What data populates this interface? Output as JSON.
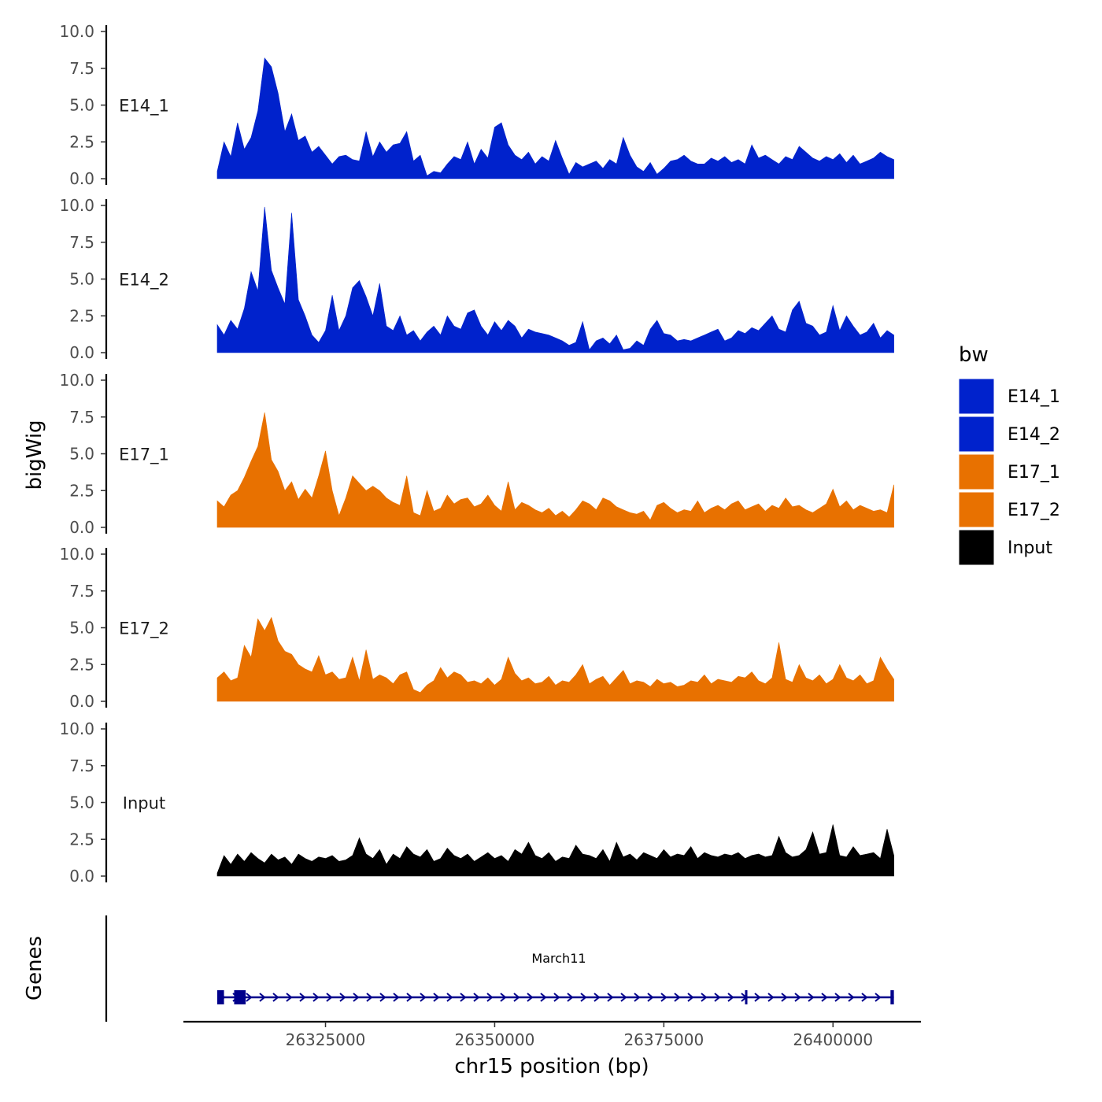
{
  "chart_data": {
    "type": "area",
    "y_axis_title": "bigWig",
    "x_axis_title": "chr15 position (bp)",
    "gene_axis_title": "Genes",
    "xlim": [
      26304000,
      26413000
    ],
    "x_data_range": [
      26309000,
      26409000
    ],
    "x_ticks": [
      26325000,
      26350000,
      26375000,
      26400000
    ],
    "x_tick_labels": [
      "26325000",
      "26350000",
      "26375000",
      "26400000"
    ],
    "ylim": [
      0,
      10
    ],
    "y_ticks": [
      0,
      2.5,
      5,
      7.5,
      10
    ],
    "y_tick_labels": [
      "0.0",
      "2.5",
      "5.0",
      "7.5",
      "10.0"
    ],
    "legend": {
      "title": "bw",
      "entries": [
        {
          "name": "E14_1",
          "color": "#0022cc"
        },
        {
          "name": "E14_2",
          "color": "#0022cc"
        },
        {
          "name": "E17_1",
          "color": "#e87100"
        },
        {
          "name": "E17_2",
          "color": "#e87100"
        },
        {
          "name": "Input",
          "color": "#000000"
        }
      ]
    },
    "series": [
      {
        "name": "E14_1",
        "color": "#0022cc",
        "x": [
          26309000,
          26310000,
          26311000,
          26312000,
          26313000,
          26314000,
          26315000,
          26316000,
          26317000,
          26318000,
          26319000,
          26320000,
          26321000,
          26322000,
          26323000,
          26324000,
          26325000,
          26326000,
          26327000,
          26328000,
          26329000,
          26330000,
          26331000,
          26332000,
          26333000,
          26334000,
          26335000,
          26336000,
          26337000,
          26338000,
          26339000,
          26340000,
          26341000,
          26342000,
          26343000,
          26344000,
          26345000,
          26346000,
          26347000,
          26348000,
          26349000,
          26350000,
          26351000,
          26352000,
          26353000,
          26354000,
          26355000,
          26356000,
          26357000,
          26358000,
          26359000,
          26360000,
          26361000,
          26362000,
          26363000,
          26364000,
          26365000,
          26366000,
          26367000,
          26368000,
          26369000,
          26370000,
          26371000,
          26372000,
          26373000,
          26374000,
          26375000,
          26376000,
          26377000,
          26378000,
          26379000,
          26380000,
          26381000,
          26382000,
          26383000,
          26384000,
          26385000,
          26386000,
          26387000,
          26388000,
          26389000,
          26390000,
          26391000,
          26392000,
          26393000,
          26394000,
          26395000,
          26396000,
          26397000,
          26398000,
          26399000,
          26400000,
          26401000,
          26402000,
          26403000,
          26404000,
          26405000,
          26406000,
          26407000,
          26408000,
          26409000
        ],
        "values": [
          0.5,
          2.5,
          1.5,
          3.8,
          2.0,
          2.8,
          4.6,
          8.2,
          7.6,
          5.8,
          3.2,
          4.4,
          2.6,
          2.9,
          1.8,
          2.2,
          1.6,
          1.0,
          1.5,
          1.6,
          1.3,
          1.2,
          3.2,
          1.5,
          2.5,
          1.8,
          2.3,
          2.4,
          3.2,
          1.2,
          1.6,
          0.2,
          0.5,
          0.4,
          1.0,
          1.5,
          1.3,
          2.5,
          1.0,
          2.0,
          1.4,
          3.5,
          3.8,
          2.3,
          1.6,
          1.3,
          1.8,
          1.0,
          1.5,
          1.2,
          2.6,
          1.4,
          0.3,
          1.1,
          0.8,
          1.0,
          1.2,
          0.7,
          1.3,
          1.0,
          2.8,
          1.6,
          0.8,
          0.5,
          1.1,
          0.3,
          0.7,
          1.2,
          1.3,
          1.6,
          1.2,
          1.0,
          1.0,
          1.4,
          1.2,
          1.5,
          1.1,
          1.3,
          1.0,
          2.3,
          1.4,
          1.6,
          1.3,
          1.0,
          1.5,
          1.3,
          2.2,
          1.8,
          1.4,
          1.2,
          1.5,
          1.3,
          1.7,
          1.1,
          1.6,
          1.0,
          1.2,
          1.4,
          1.8,
          1.5,
          1.3
        ]
      },
      {
        "name": "E14_2",
        "color": "#0022cc",
        "x": [
          26309000,
          26310000,
          26311000,
          26312000,
          26313000,
          26314000,
          26315000,
          26316000,
          26317000,
          26318000,
          26319000,
          26320000,
          26321000,
          26322000,
          26323000,
          26324000,
          26325000,
          26326000,
          26327000,
          26328000,
          26329000,
          26330000,
          26331000,
          26332000,
          26333000,
          26334000,
          26335000,
          26336000,
          26337000,
          26338000,
          26339000,
          26340000,
          26341000,
          26342000,
          26343000,
          26344000,
          26345000,
          26346000,
          26347000,
          26348000,
          26349000,
          26350000,
          26351000,
          26352000,
          26353000,
          26354000,
          26355000,
          26356000,
          26357000,
          26358000,
          26359000,
          26360000,
          26361000,
          26362000,
          26363000,
          26364000,
          26365000,
          26366000,
          26367000,
          26368000,
          26369000,
          26370000,
          26371000,
          26372000,
          26373000,
          26374000,
          26375000,
          26376000,
          26377000,
          26378000,
          26379000,
          26380000,
          26381000,
          26382000,
          26383000,
          26384000,
          26385000,
          26386000,
          26387000,
          26388000,
          26389000,
          26390000,
          26391000,
          26392000,
          26393000,
          26394000,
          26395000,
          26396000,
          26397000,
          26398000,
          26399000,
          26400000,
          26401000,
          26402000,
          26403000,
          26404000,
          26405000,
          26406000,
          26407000,
          26408000,
          26409000
        ],
        "values": [
          1.9,
          1.2,
          2.2,
          1.6,
          3.0,
          5.5,
          4.2,
          9.9,
          5.6,
          4.4,
          3.3,
          9.5,
          3.6,
          2.5,
          1.2,
          0.7,
          1.5,
          3.9,
          1.5,
          2.5,
          4.4,
          4.9,
          3.8,
          2.5,
          4.7,
          1.8,
          1.5,
          2.5,
          1.2,
          1.5,
          0.8,
          1.4,
          1.8,
          1.2,
          2.5,
          1.8,
          1.6,
          2.7,
          2.9,
          1.8,
          1.2,
          2.1,
          1.5,
          2.2,
          1.8,
          1.0,
          1.6,
          1.4,
          1.3,
          1.2,
          1.0,
          0.8,
          0.5,
          0.7,
          2.1,
          0.2,
          0.8,
          1.0,
          0.6,
          1.2,
          0.2,
          0.3,
          0.8,
          0.5,
          1.6,
          2.2,
          1.3,
          1.2,
          0.8,
          0.9,
          0.8,
          1.0,
          1.2,
          1.4,
          1.6,
          0.8,
          1.0,
          1.5,
          1.3,
          1.7,
          1.5,
          2.0,
          2.5,
          1.6,
          1.4,
          2.9,
          3.5,
          2.0,
          1.8,
          1.2,
          1.4,
          3.2,
          1.5,
          2.5,
          1.8,
          1.2,
          1.4,
          2.0,
          1.0,
          1.5,
          1.2
        ]
      },
      {
        "name": "E17_1",
        "color": "#e87100",
        "x": [
          26309000,
          26310000,
          26311000,
          26312000,
          26313000,
          26314000,
          26315000,
          26316000,
          26317000,
          26318000,
          26319000,
          26320000,
          26321000,
          26322000,
          26323000,
          26324000,
          26325000,
          26326000,
          26327000,
          26328000,
          26329000,
          26330000,
          26331000,
          26332000,
          26333000,
          26334000,
          26335000,
          26336000,
          26337000,
          26338000,
          26339000,
          26340000,
          26341000,
          26342000,
          26343000,
          26344000,
          26345000,
          26346000,
          26347000,
          26348000,
          26349000,
          26350000,
          26351000,
          26352000,
          26353000,
          26354000,
          26355000,
          26356000,
          26357000,
          26358000,
          26359000,
          26360000,
          26361000,
          26362000,
          26363000,
          26364000,
          26365000,
          26366000,
          26367000,
          26368000,
          26369000,
          26370000,
          26371000,
          26372000,
          26373000,
          26374000,
          26375000,
          26376000,
          26377000,
          26378000,
          26379000,
          26380000,
          26381000,
          26382000,
          26383000,
          26384000,
          26385000,
          26386000,
          26387000,
          26388000,
          26389000,
          26390000,
          26391000,
          26392000,
          26393000,
          26394000,
          26395000,
          26396000,
          26397000,
          26398000,
          26399000,
          26400000,
          26401000,
          26402000,
          26403000,
          26404000,
          26405000,
          26406000,
          26407000,
          26408000,
          26409000
        ],
        "values": [
          1.8,
          1.4,
          2.2,
          2.5,
          3.4,
          4.5,
          5.5,
          7.8,
          4.6,
          3.8,
          2.5,
          3.1,
          1.9,
          2.6,
          2.0,
          3.5,
          5.2,
          2.5,
          0.8,
          2.0,
          3.5,
          3.0,
          2.5,
          2.8,
          2.5,
          2.0,
          1.7,
          1.5,
          3.5,
          1.0,
          0.8,
          2.5,
          1.1,
          1.3,
          2.2,
          1.6,
          1.9,
          2.0,
          1.4,
          1.6,
          2.2,
          1.5,
          1.1,
          3.1,
          1.2,
          1.7,
          1.5,
          1.2,
          1.0,
          1.3,
          0.8,
          1.1,
          0.7,
          1.2,
          1.8,
          1.6,
          1.2,
          2.0,
          1.8,
          1.4,
          1.2,
          1.0,
          0.9,
          1.1,
          0.5,
          1.5,
          1.7,
          1.3,
          1.0,
          1.2,
          1.1,
          1.8,
          1.0,
          1.3,
          1.5,
          1.2,
          1.6,
          1.8,
          1.2,
          1.4,
          1.6,
          1.1,
          1.5,
          1.3,
          2.0,
          1.4,
          1.5,
          1.2,
          1.0,
          1.3,
          1.6,
          2.6,
          1.4,
          1.8,
          1.2,
          1.5,
          1.3,
          1.1,
          1.2,
          1.0,
          2.9
        ]
      },
      {
        "name": "E17_2",
        "color": "#e87100",
        "x": [
          26309000,
          26310000,
          26311000,
          26312000,
          26313000,
          26314000,
          26315000,
          26316000,
          26317000,
          26318000,
          26319000,
          26320000,
          26321000,
          26322000,
          26323000,
          26324000,
          26325000,
          26326000,
          26327000,
          26328000,
          26329000,
          26330000,
          26331000,
          26332000,
          26333000,
          26334000,
          26335000,
          26336000,
          26337000,
          26338000,
          26339000,
          26340000,
          26341000,
          26342000,
          26343000,
          26344000,
          26345000,
          26346000,
          26347000,
          26348000,
          26349000,
          26350000,
          26351000,
          26352000,
          26353000,
          26354000,
          26355000,
          26356000,
          26357000,
          26358000,
          26359000,
          26360000,
          26361000,
          26362000,
          26363000,
          26364000,
          26365000,
          26366000,
          26367000,
          26368000,
          26369000,
          26370000,
          26371000,
          26372000,
          26373000,
          26374000,
          26375000,
          26376000,
          26377000,
          26378000,
          26379000,
          26380000,
          26381000,
          26382000,
          26383000,
          26384000,
          26385000,
          26386000,
          26387000,
          26388000,
          26389000,
          26390000,
          26391000,
          26392000,
          26393000,
          26394000,
          26395000,
          26396000,
          26397000,
          26398000,
          26399000,
          26400000,
          26401000,
          26402000,
          26403000,
          26404000,
          26405000,
          26406000,
          26407000,
          26408000,
          26409000
        ],
        "values": [
          1.6,
          2.0,
          1.4,
          1.6,
          3.8,
          3.0,
          5.6,
          4.8,
          5.7,
          4.1,
          3.4,
          3.2,
          2.5,
          2.2,
          2.0,
          3.1,
          1.8,
          2.0,
          1.5,
          1.6,
          3.0,
          1.4,
          3.5,
          1.5,
          1.8,
          1.6,
          1.2,
          1.8,
          2.0,
          0.8,
          0.6,
          1.1,
          1.4,
          2.3,
          1.6,
          2.0,
          1.8,
          1.3,
          1.4,
          1.2,
          1.6,
          1.1,
          1.5,
          3.0,
          1.9,
          1.4,
          1.6,
          1.2,
          1.3,
          1.7,
          1.1,
          1.4,
          1.3,
          1.8,
          2.5,
          1.2,
          1.5,
          1.7,
          1.1,
          1.6,
          2.1,
          1.2,
          1.4,
          1.3,
          1.0,
          1.5,
          1.2,
          1.3,
          1.0,
          1.1,
          1.4,
          1.3,
          1.8,
          1.2,
          1.5,
          1.4,
          1.3,
          1.7,
          1.6,
          2.0,
          1.4,
          1.2,
          1.6,
          4.0,
          1.5,
          1.3,
          2.5,
          1.6,
          1.4,
          1.8,
          1.2,
          1.5,
          2.5,
          1.6,
          1.4,
          1.8,
          1.2,
          1.4,
          3.0,
          2.2,
          1.5
        ]
      },
      {
        "name": "Input",
        "color": "#000000",
        "x": [
          26309000,
          26310000,
          26311000,
          26312000,
          26313000,
          26314000,
          26315000,
          26316000,
          26317000,
          26318000,
          26319000,
          26320000,
          26321000,
          26322000,
          26323000,
          26324000,
          26325000,
          26326000,
          26327000,
          26328000,
          26329000,
          26330000,
          26331000,
          26332000,
          26333000,
          26334000,
          26335000,
          26336000,
          26337000,
          26338000,
          26339000,
          26340000,
          26341000,
          26342000,
          26343000,
          26344000,
          26345000,
          26346000,
          26347000,
          26348000,
          26349000,
          26350000,
          26351000,
          26352000,
          26353000,
          26354000,
          26355000,
          26356000,
          26357000,
          26358000,
          26359000,
          26360000,
          26361000,
          26362000,
          26363000,
          26364000,
          26365000,
          26366000,
          26367000,
          26368000,
          26369000,
          26370000,
          26371000,
          26372000,
          26373000,
          26374000,
          26375000,
          26376000,
          26377000,
          26378000,
          26379000,
          26380000,
          26381000,
          26382000,
          26383000,
          26384000,
          26385000,
          26386000,
          26387000,
          26388000,
          26389000,
          26390000,
          26391000,
          26392000,
          26393000,
          26394000,
          26395000,
          26396000,
          26397000,
          26398000,
          26399000,
          26400000,
          26401000,
          26402000,
          26403000,
          26404000,
          26405000,
          26406000,
          26407000,
          26408000,
          26409000
        ],
        "values": [
          0.2,
          1.4,
          0.8,
          1.5,
          1.0,
          1.6,
          1.2,
          0.9,
          1.5,
          1.1,
          1.3,
          0.8,
          1.5,
          1.2,
          1.0,
          1.3,
          1.2,
          1.4,
          1.0,
          1.1,
          1.4,
          2.6,
          1.5,
          1.2,
          1.8,
          0.8,
          1.5,
          1.2,
          2.0,
          1.5,
          1.3,
          1.8,
          1.0,
          1.2,
          1.9,
          1.4,
          1.2,
          1.5,
          1.0,
          1.3,
          1.6,
          1.2,
          1.4,
          1.0,
          1.8,
          1.5,
          2.3,
          1.4,
          1.2,
          1.6,
          1.0,
          1.3,
          1.2,
          2.1,
          1.5,
          1.4,
          1.2,
          1.8,
          1.0,
          2.3,
          1.3,
          1.5,
          1.1,
          1.6,
          1.4,
          1.2,
          1.8,
          1.3,
          1.5,
          1.4,
          2.0,
          1.2,
          1.6,
          1.4,
          1.3,
          1.5,
          1.4,
          1.6,
          1.2,
          1.4,
          1.5,
          1.3,
          1.4,
          2.7,
          1.6,
          1.3,
          1.4,
          1.8,
          3.0,
          1.5,
          1.6,
          3.5,
          1.4,
          1.3,
          2.0,
          1.4,
          1.5,
          1.6,
          1.2,
          3.2,
          1.4
        ]
      }
    ],
    "gene_track": {
      "gene_name": "March11",
      "color": "#00008b",
      "strand": "+",
      "start": 26309000,
      "end": 26409000,
      "exons": [
        {
          "start": 26309000,
          "end": 26310000
        },
        {
          "start": 26311500,
          "end": 26313200
        },
        {
          "start": 26387000,
          "end": 26387300
        },
        {
          "start": 26408500,
          "end": 26409000
        }
      ]
    }
  }
}
